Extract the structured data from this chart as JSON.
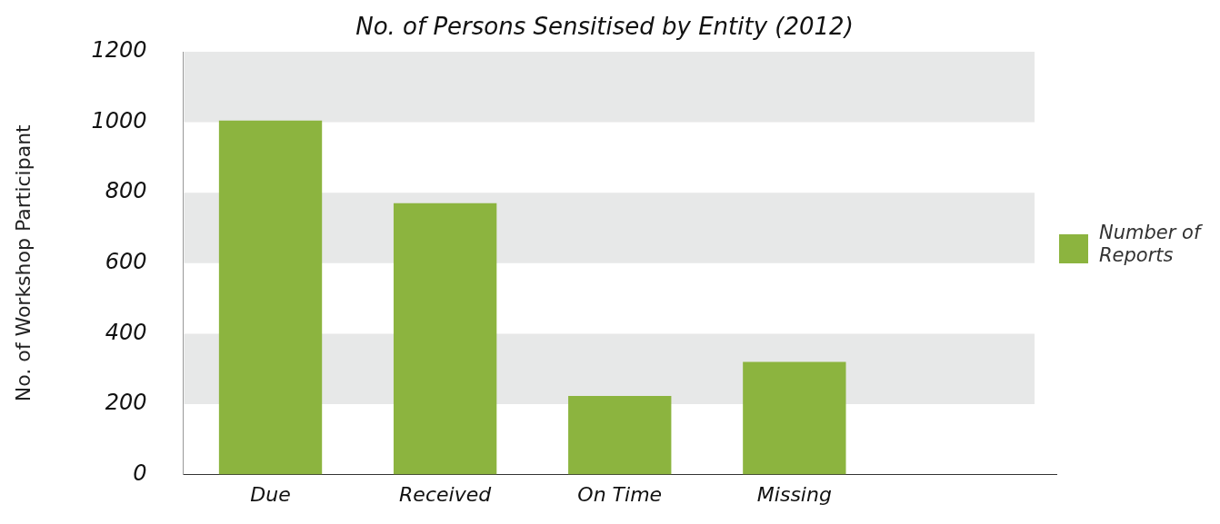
{
  "chart_data": {
    "type": "bar",
    "title": "No. of Persons Sensitised by Entity (2012)",
    "ylabel": "No. of Workshop Participant",
    "categories": [
      "Due",
      "Received",
      "On Time",
      "Missing",
      null
    ],
    "series": [
      {
        "name": "Number of Reports",
        "color": "#8cb43f",
        "values": [
          1005,
          770,
          223,
          320,
          null
        ]
      }
    ],
    "ylim": [
      0,
      1200
    ],
    "yticks": [
      0,
      200,
      400,
      600,
      800,
      1000,
      1200
    ],
    "grid": false,
    "legend": "right",
    "bands": [
      {
        "axis": "y",
        "from": 200,
        "to": 400,
        "color": "#e7e8e8"
      },
      {
        "axis": "y",
        "from": 600,
        "to": 800,
        "color": "#e7e8e8"
      },
      {
        "axis": "y",
        "from": 1000,
        "to": 1200,
        "color": "#e7e8e8"
      }
    ]
  }
}
